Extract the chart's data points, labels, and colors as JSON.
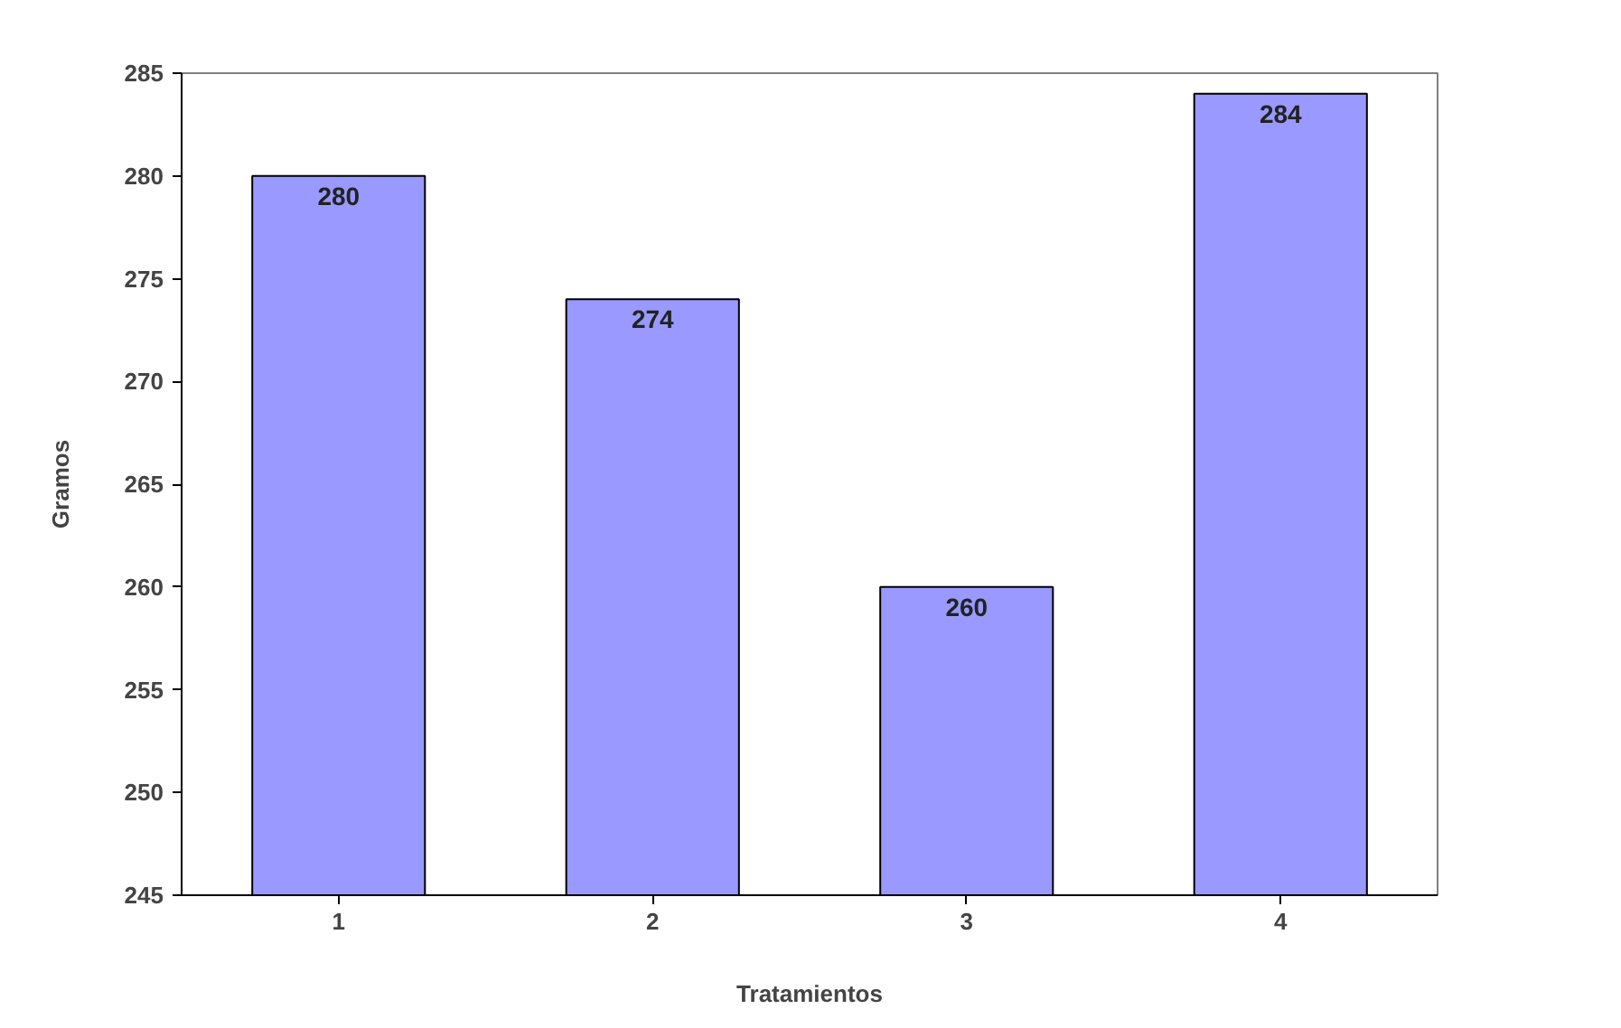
{
  "chart_data": {
    "type": "bar",
    "xlabel": "Tratamientos",
    "ylabel": "Gramos",
    "categories": [
      "1",
      "2",
      "3",
      "4"
    ],
    "values": [
      280,
      274,
      260,
      284
    ],
    "color": "#9999ff",
    "ylim": [
      245,
      285
    ],
    "yticks": [
      245,
      250,
      255,
      260,
      265,
      270,
      275,
      280,
      285
    ],
    "data_labels": true,
    "grid": false,
    "legend": false
  }
}
